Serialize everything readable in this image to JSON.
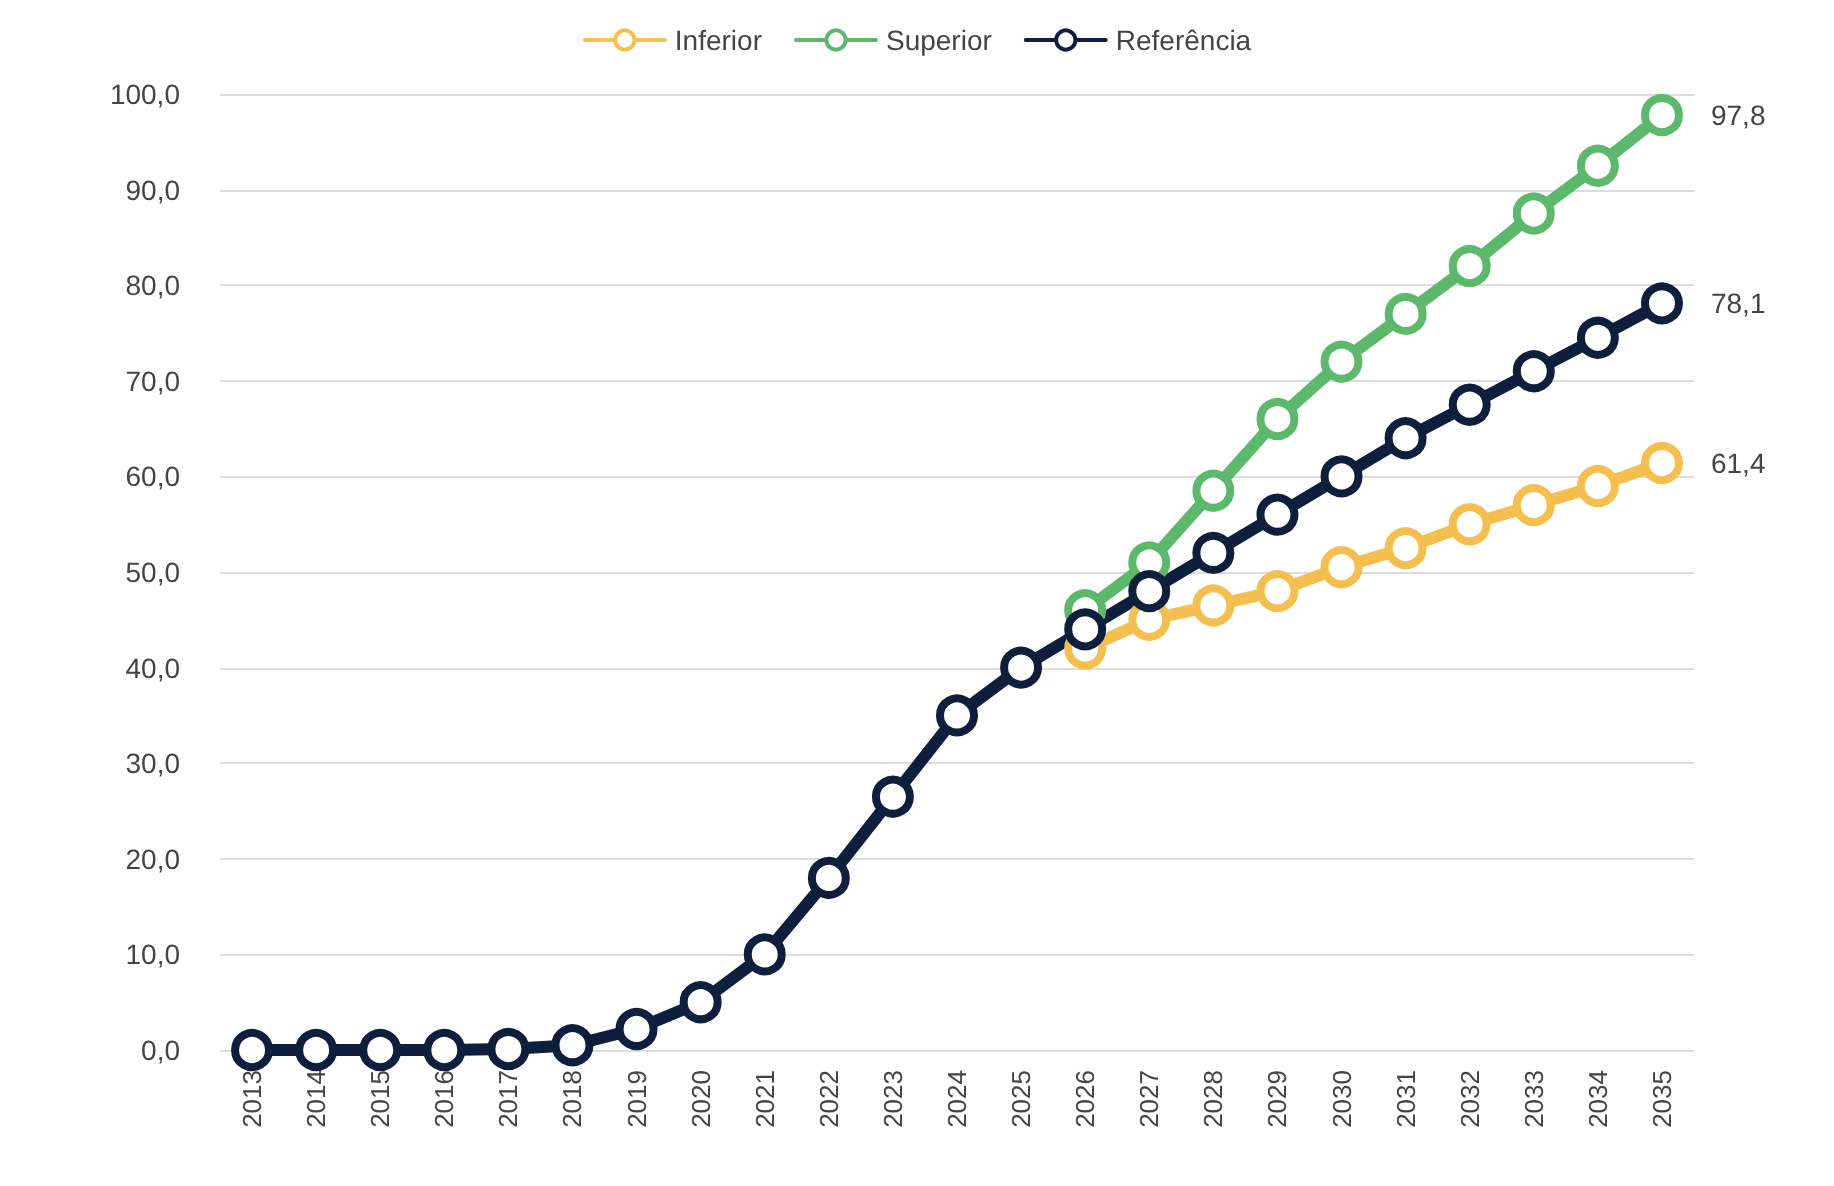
{
  "chart_data": {
    "type": "line",
    "categories": [
      "2013",
      "2014",
      "2015",
      "2016",
      "2017",
      "2018",
      "2019",
      "2020",
      "2021",
      "2022",
      "2023",
      "2024",
      "2025",
      "2026",
      "2027",
      "2028",
      "2029",
      "2030",
      "2031",
      "2032",
      "2033",
      "2034",
      "2035"
    ],
    "series": [
      {
        "name": "Inferior",
        "color": "#f4bf4f",
        "values": [
          null,
          null,
          null,
          null,
          null,
          null,
          null,
          null,
          null,
          null,
          null,
          null,
          null,
          42,
          45,
          46.5,
          48,
          50.5,
          52.5,
          55,
          57,
          59,
          61.4
        ],
        "value_labels": [
          null,
          null,
          null,
          null,
          null,
          null,
          null,
          null,
          null,
          null,
          null,
          null,
          null,
          null,
          null,
          null,
          null,
          null,
          null,
          null,
          null,
          null,
          "61,4"
        ]
      },
      {
        "name": "Superior",
        "color": "#5cb86a",
        "values": [
          null,
          null,
          null,
          null,
          null,
          null,
          null,
          null,
          null,
          null,
          null,
          null,
          null,
          46,
          51,
          58.5,
          66,
          72,
          77,
          82,
          87.5,
          92.5,
          97.8
        ],
        "value_labels": [
          null,
          null,
          null,
          null,
          null,
          null,
          null,
          null,
          null,
          null,
          null,
          null,
          null,
          null,
          null,
          null,
          null,
          null,
          null,
          null,
          null,
          null,
          "97,8"
        ]
      },
      {
        "name": "Referência",
        "color": "#0d1f3c",
        "values": [
          0,
          0,
          0,
          0,
          0.1,
          0.5,
          2.2,
          5,
          10,
          18,
          26.5,
          35,
          40,
          44,
          48,
          52,
          56,
          60,
          64,
          67.5,
          71,
          74.5,
          78.1
        ],
        "value_labels": [
          null,
          null,
          null,
          null,
          null,
          null,
          null,
          null,
          null,
          null,
          null,
          null,
          null,
          null,
          null,
          null,
          null,
          null,
          null,
          null,
          null,
          null,
          "78,1"
        ]
      }
    ],
    "ylim": [
      0,
      100
    ],
    "yticks": [
      {
        "value": 0,
        "label": "0,0"
      },
      {
        "value": 10,
        "label": "10,0"
      },
      {
        "value": 20,
        "label": "20,0"
      },
      {
        "value": 30,
        "label": "30,0"
      },
      {
        "value": 40,
        "label": "40,0"
      },
      {
        "value": 50,
        "label": "50,0"
      },
      {
        "value": 60,
        "label": "60,0"
      },
      {
        "value": 70,
        "label": "70,0"
      },
      {
        "value": 80,
        "label": "80,0"
      },
      {
        "value": 90,
        "label": "90,0"
      },
      {
        "value": 100,
        "label": "100,0"
      }
    ],
    "grid": "y",
    "legend": "top",
    "marker": "circle",
    "line_style": "solid"
  }
}
